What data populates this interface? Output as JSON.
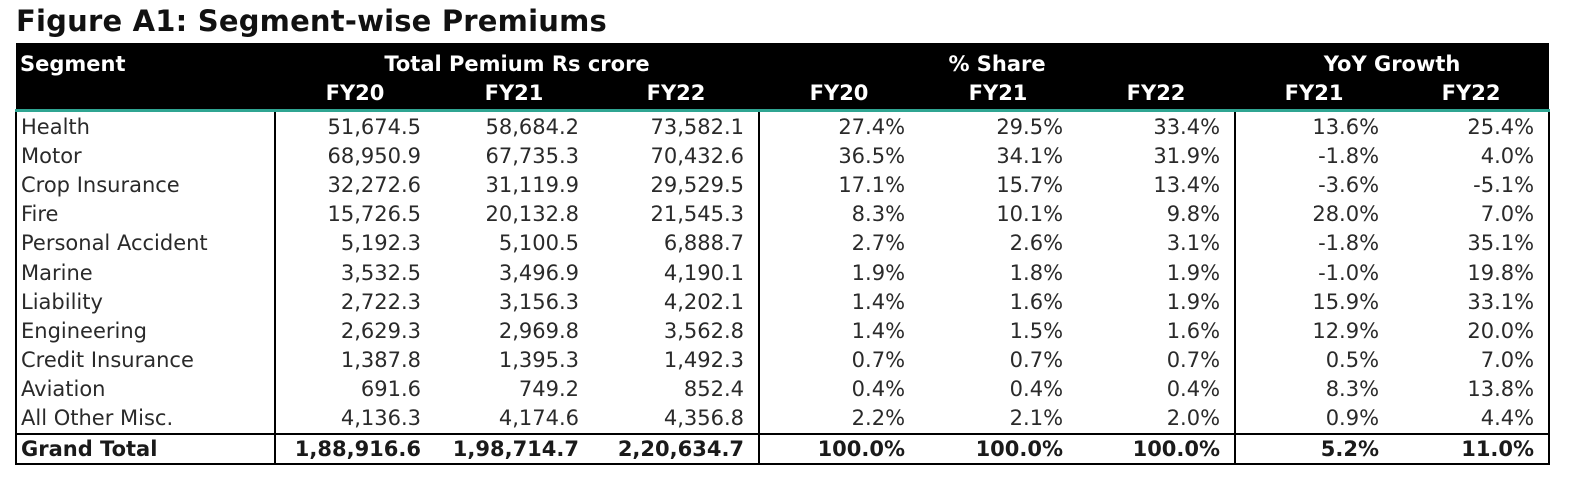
{
  "title": "Figure A1: Segment-wise Premiums",
  "table": {
    "segment_header": "Segment",
    "groups": [
      "Total Pemium Rs crore",
      "% Share",
      "YoY Growth"
    ],
    "sub_headers": [
      "FY20",
      "FY21",
      "FY22",
      "FY20",
      "FY21",
      "FY22",
      "FY21",
      "FY22"
    ],
    "rows": [
      {
        "name": "Health",
        "cells": [
          "51,674.5",
          "58,684.2",
          "73,582.1",
          "27.4%",
          "29.5%",
          "33.4%",
          "13.6%",
          "25.4%"
        ]
      },
      {
        "name": "Motor",
        "cells": [
          "68,950.9",
          "67,735.3",
          "70,432.6",
          "36.5%",
          "34.1%",
          "31.9%",
          "-1.8%",
          "4.0%"
        ]
      },
      {
        "name": "Crop Insurance",
        "cells": [
          "32,272.6",
          "31,119.9",
          "29,529.5",
          "17.1%",
          "15.7%",
          "13.4%",
          "-3.6%",
          "-5.1%"
        ]
      },
      {
        "name": "Fire",
        "cells": [
          "15,726.5",
          "20,132.8",
          "21,545.3",
          "8.3%",
          "10.1%",
          "9.8%",
          "28.0%",
          "7.0%"
        ]
      },
      {
        "name": "Personal Accident",
        "cells": [
          "5,192.3",
          "5,100.5",
          "6,888.7",
          "2.7%",
          "2.6%",
          "3.1%",
          "-1.8%",
          "35.1%"
        ]
      },
      {
        "name": "Marine",
        "cells": [
          "3,532.5",
          "3,496.9",
          "4,190.1",
          "1.9%",
          "1.8%",
          "1.9%",
          "-1.0%",
          "19.8%"
        ]
      },
      {
        "name": "Liability",
        "cells": [
          "2,722.3",
          "3,156.3",
          "4,202.1",
          "1.4%",
          "1.6%",
          "1.9%",
          "15.9%",
          "33.1%"
        ]
      },
      {
        "name": "Engineering",
        "cells": [
          "2,629.3",
          "2,969.8",
          "3,562.8",
          "1.4%",
          "1.5%",
          "1.6%",
          "12.9%",
          "20.0%"
        ]
      },
      {
        "name": "Credit Insurance",
        "cells": [
          "1,387.8",
          "1,395.3",
          "1,492.3",
          "0.7%",
          "0.7%",
          "0.7%",
          "0.5%",
          "7.0%"
        ]
      },
      {
        "name": "Aviation",
        "cells": [
          "691.6",
          "749.2",
          "852.4",
          "0.4%",
          "0.4%",
          "0.4%",
          "8.3%",
          "13.8%"
        ]
      },
      {
        "name": "All Other Misc.",
        "cells": [
          "4,136.3",
          "4,174.6",
          "4,356.8",
          "2.2%",
          "2.1%",
          "2.0%",
          "0.9%",
          "4.4%"
        ]
      }
    ],
    "total": {
      "name": "Grand Total",
      "cells": [
        "1,88,916.6",
        "1,98,714.7",
        "2,20,634.7",
        "100.0%",
        "100.0%",
        "100.0%",
        "5.2%",
        "11.0%"
      ]
    }
  },
  "colors": {
    "header_bg": "#000000",
    "header_text": "#ffffff",
    "accent_rule": "#2fa592"
  }
}
